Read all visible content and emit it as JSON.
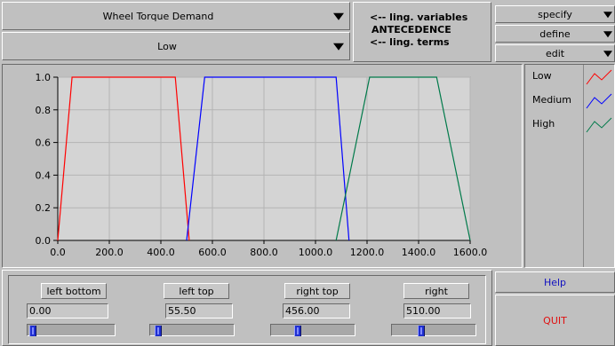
{
  "header": {
    "variable_ring": "Wheel Torque Demand",
    "term_ring": "Low",
    "info": {
      "line1": "<-- ling. variables",
      "line2": "ANTECEDENCE",
      "line3": "<-- ling. terms"
    }
  },
  "menus": {
    "specify": "specify",
    "define": "define",
    "edit": "edit"
  },
  "legend": [
    {
      "label": "Low",
      "color": "#ff0000"
    },
    {
      "label": "Medium",
      "color": "#0000ff"
    },
    {
      "label": "High",
      "color": "#007a4a"
    }
  ],
  "chart_data": {
    "type": "line",
    "xlim": [
      0,
      1600
    ],
    "ylim": [
      0,
      1.0
    ],
    "x_ticks": [
      "0.0",
      "200.0",
      "400.0",
      "600.0",
      "800.0",
      "1000.0",
      "1200.0",
      "1400.0",
      "1600.0"
    ],
    "y_ticks": [
      "0.0",
      "0.2",
      "0.4",
      "0.6",
      "0.8",
      "1.0"
    ],
    "grid": true,
    "series": [
      {
        "name": "Low",
        "color": "#ff0000",
        "x": [
          0,
          55.5,
          456,
          510
        ],
        "y": [
          0,
          1,
          1,
          0
        ]
      },
      {
        "name": "Medium",
        "color": "#0000ff",
        "x": [
          500,
          570,
          1080,
          1130
        ],
        "y": [
          0,
          1,
          1,
          0
        ]
      },
      {
        "name": "High",
        "color": "#007a4a",
        "x": [
          1080,
          1210,
          1470,
          1600
        ],
        "y": [
          0,
          1,
          1,
          0
        ]
      }
    ]
  },
  "controls": [
    {
      "label": "left bottom",
      "value": "0.00",
      "slider": 0.0
    },
    {
      "label": "left top",
      "value": "55.50",
      "slider": 0.0347
    },
    {
      "label": "right top",
      "value": "456.00",
      "slider": 0.285
    },
    {
      "label": "right",
      "value": "510.00",
      "slider": 0.319
    }
  ],
  "buttons": {
    "help": "Help",
    "quit": "QUIT"
  }
}
